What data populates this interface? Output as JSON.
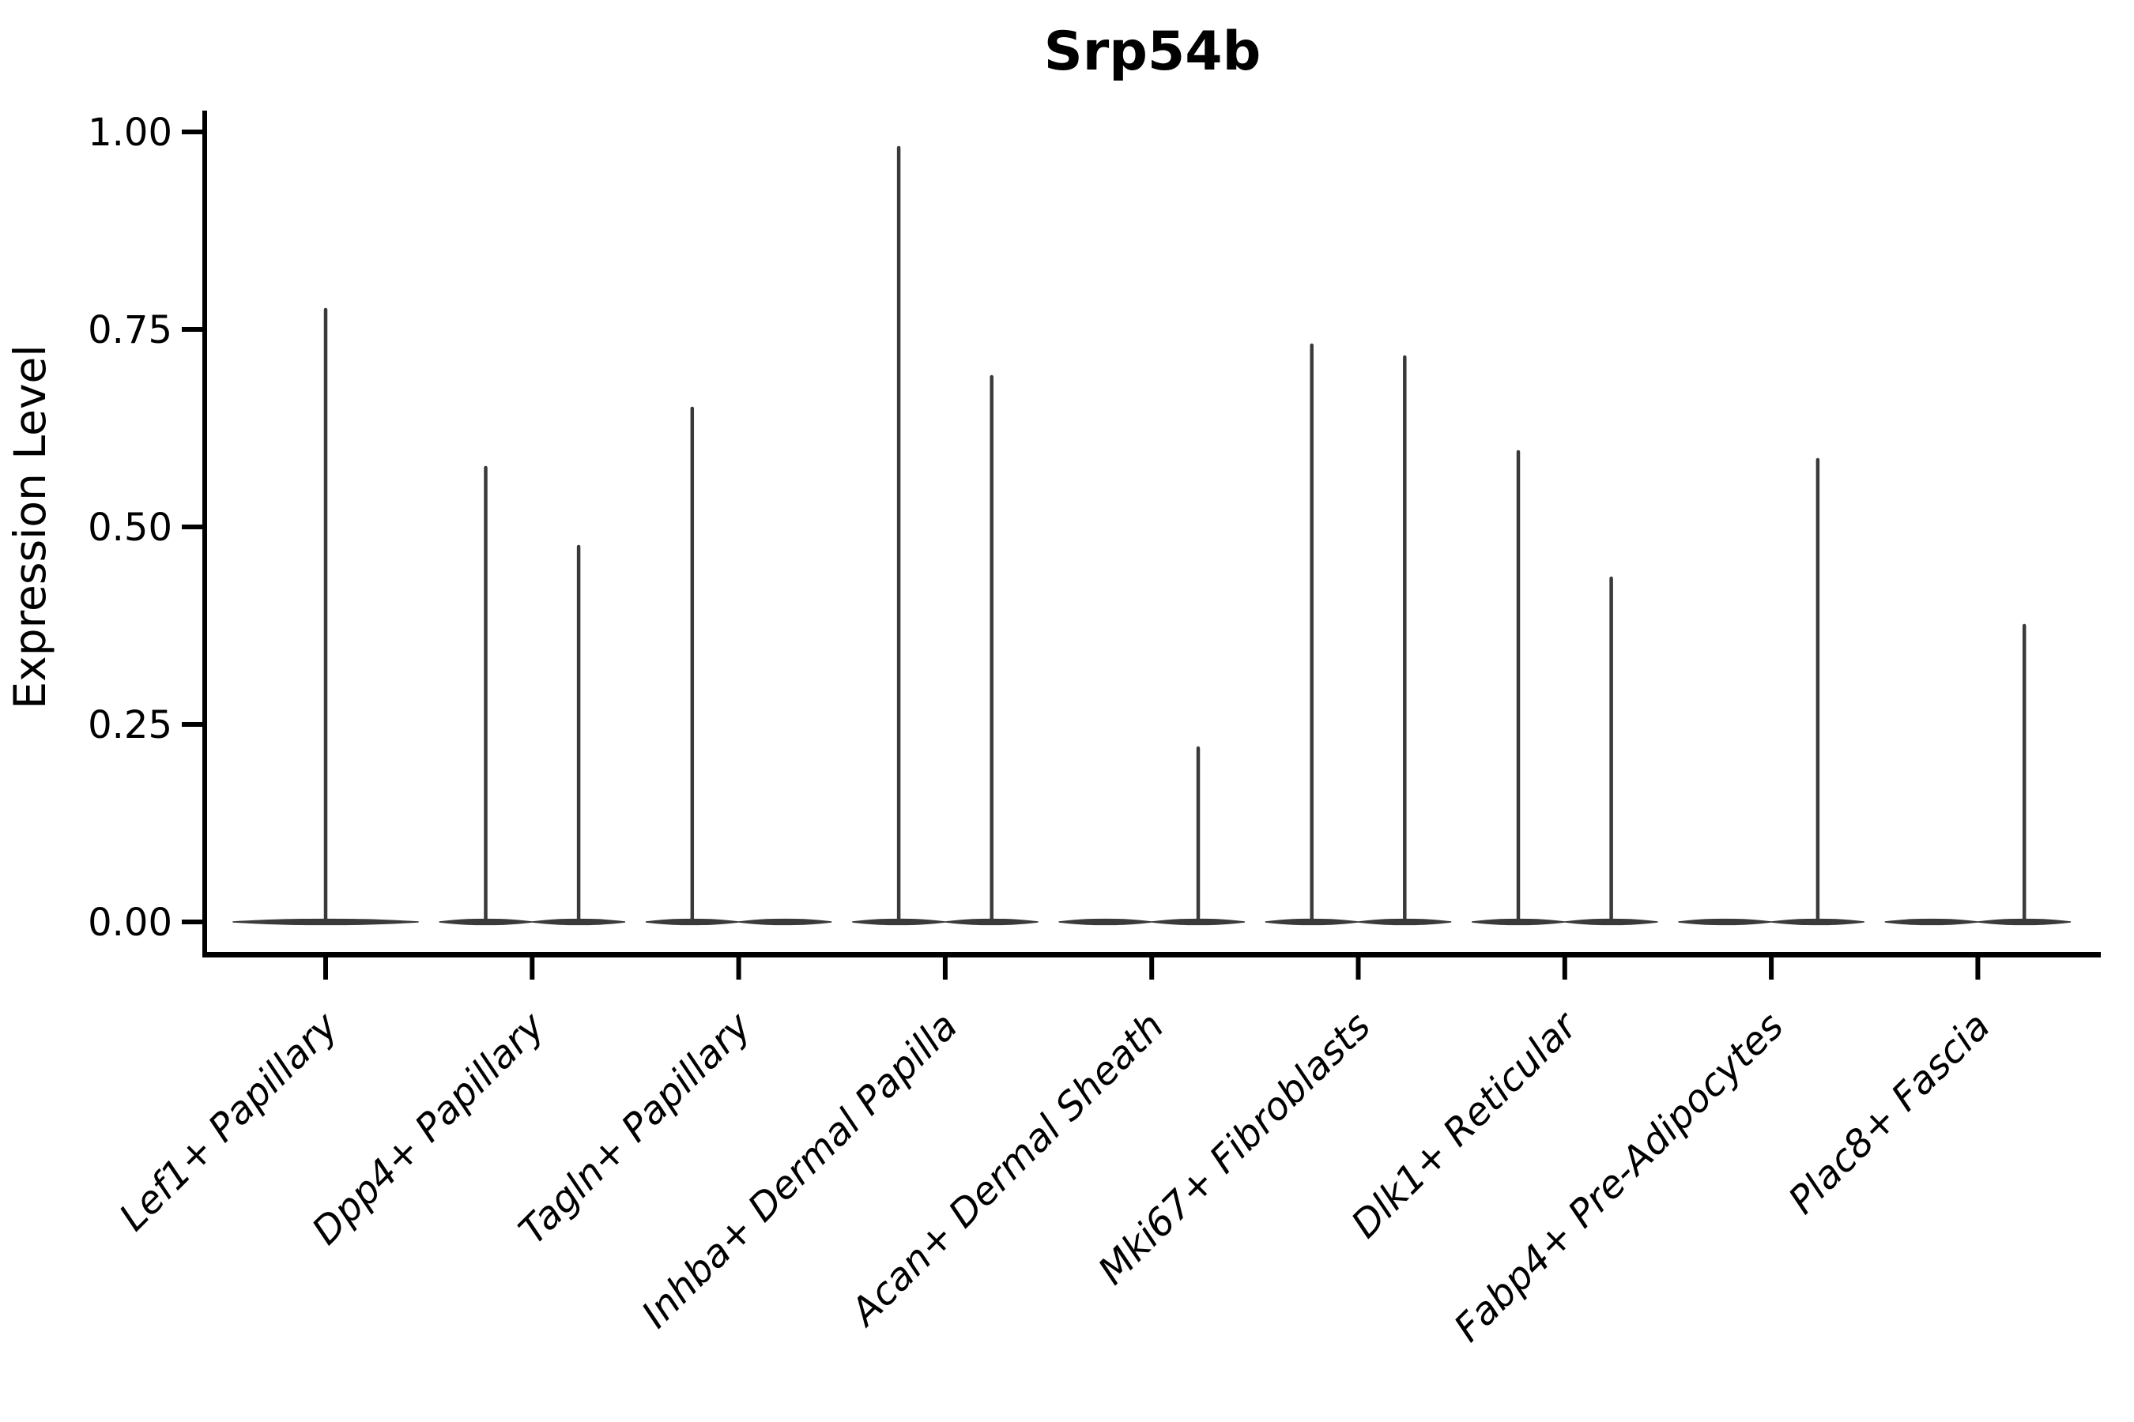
{
  "colors": {
    "violin": "#3a3a3a",
    "axis": "#000000",
    "text": "#000000",
    "background": "#ffffff"
  },
  "chart_data": {
    "type": "violin",
    "title": "Srp54b",
    "ylabel": "Expression Level",
    "xlabel": "",
    "ylim": [
      0,
      1.0
    ],
    "grid": false,
    "legend": "none",
    "x_label_rotation_deg": 45,
    "x_label_style": "italic",
    "y_ticks": [
      {
        "value": 1.0,
        "label": "1.00"
      },
      {
        "value": 0.75,
        "label": "0.75"
      },
      {
        "value": 0.5,
        "label": "0.50"
      },
      {
        "value": 0.25,
        "label": "0.25"
      },
      {
        "value": 0.0,
        "label": "0.00"
      }
    ],
    "categories": [
      {
        "label": "Lef1+ Papillary",
        "violins": [
          {
            "slot": "full",
            "max": 0.775
          }
        ]
      },
      {
        "label": "Dpp4+ Papillary",
        "violins": [
          {
            "slot": "left",
            "max": 0.575
          },
          {
            "slot": "right",
            "max": 0.475
          }
        ]
      },
      {
        "label": "Tagln+ Papillary",
        "violins": [
          {
            "slot": "left",
            "max": 0.65
          },
          {
            "slot": "right",
            "max": 0
          }
        ]
      },
      {
        "label": "Inhba+ Dermal Papilla",
        "violins": [
          {
            "slot": "left",
            "max": 0.98
          },
          {
            "slot": "right",
            "max": 0.69
          }
        ]
      },
      {
        "label": "Acan+ Dermal Sheath",
        "violins": [
          {
            "slot": "left",
            "max": 0
          },
          {
            "slot": "right",
            "max": 0.22
          }
        ]
      },
      {
        "label": "Mki67+ Fibroblasts",
        "violins": [
          {
            "slot": "left",
            "max": 0.73
          },
          {
            "slot": "right",
            "max": 0.715
          }
        ]
      },
      {
        "label": "Dlk1+ Reticular",
        "violins": [
          {
            "slot": "left",
            "max": 0.595
          },
          {
            "slot": "right",
            "max": 0.435
          }
        ]
      },
      {
        "label": "Fabp4+ Pre-Adipocytes",
        "violins": [
          {
            "slot": "left",
            "max": 0
          },
          {
            "slot": "right",
            "max": 0.585
          }
        ]
      },
      {
        "label": "Plac8+ Fascia",
        "violins": [
          {
            "slot": "left",
            "max": 0
          },
          {
            "slot": "right",
            "max": 0.375
          }
        ]
      }
    ]
  }
}
